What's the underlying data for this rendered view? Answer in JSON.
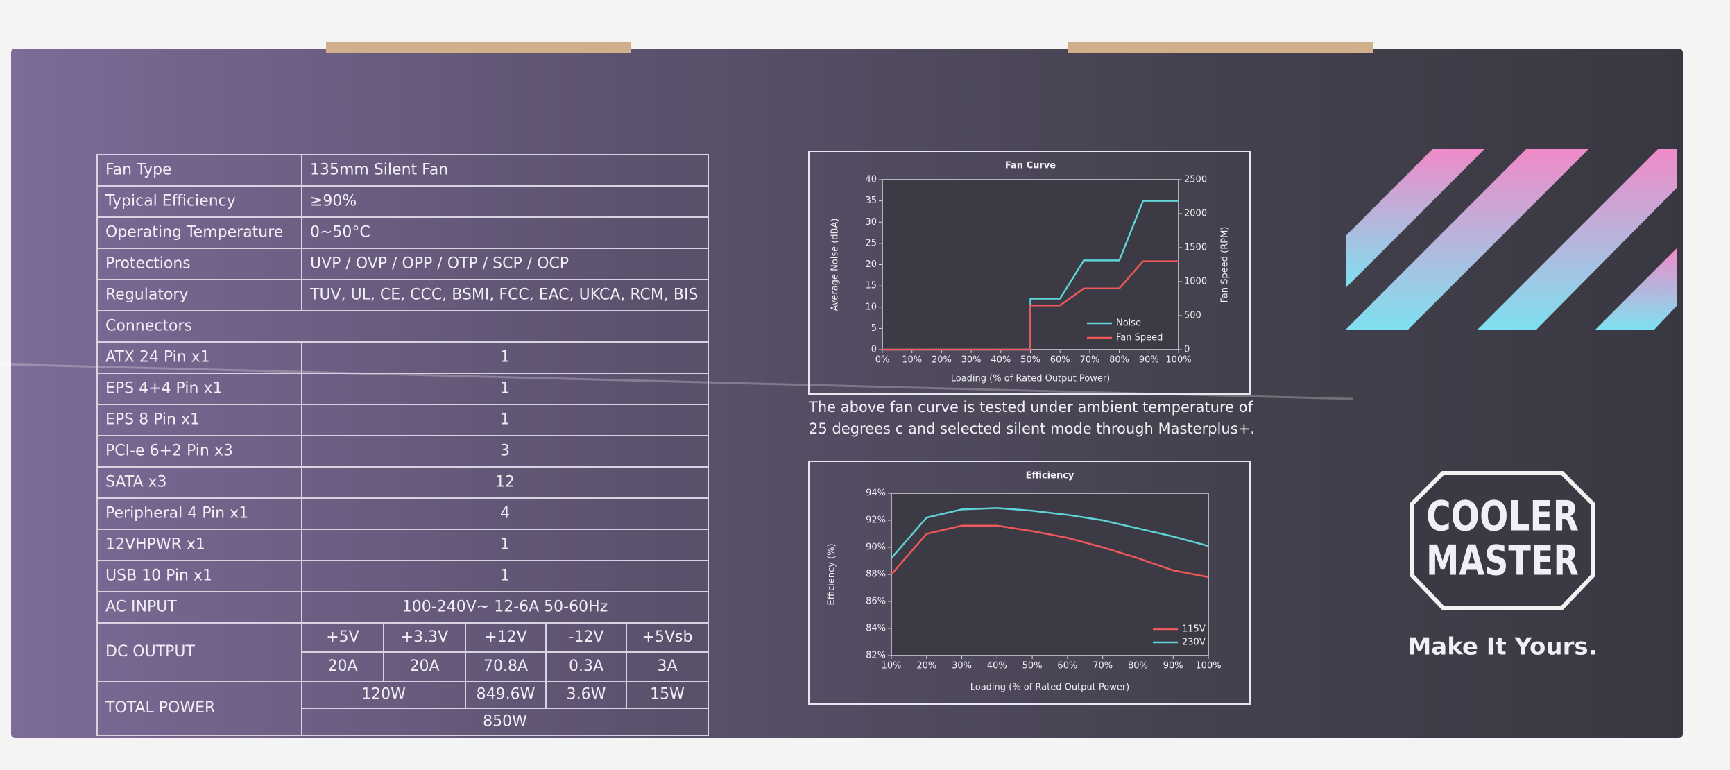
{
  "table": {
    "rows": [
      [
        "Fan Type",
        "135mm Silent Fan"
      ],
      [
        "Typical Efficiency",
        "≥90%"
      ],
      [
        "Operating Temperature",
        "0~50°C"
      ],
      [
        "Protections",
        "UVP / OVP / OPP / OTP / SCP / OCP"
      ],
      [
        "Regulatory",
        "TUV, UL, CE, CCC, BSMI, FCC, EAC, UKCA, RCM, BIS"
      ],
      [
        "Connectors"
      ],
      [
        "ATX 24 Pin x1",
        "1"
      ],
      [
        "EPS 4+4 Pin x1",
        "1"
      ],
      [
        "EPS 8 Pin x1",
        "1"
      ],
      [
        "PCI-e 6+2 Pin x3",
        "3"
      ],
      [
        "SATA x3",
        "12"
      ],
      [
        "Peripheral 4 Pin x1",
        "4"
      ],
      [
        "12VHPWR x1",
        "1"
      ],
      [
        "USB 10 Pin x1",
        "1"
      ],
      [
        "AC INPUT",
        "100-240V~ 12-6A 50-60Hz"
      ]
    ],
    "dc_output": {
      "label": "DC OUTPUT",
      "rails": [
        "+5V",
        "+3.3V",
        "+12V",
        "-12V",
        "+5Vsb"
      ],
      "currents": [
        "20A",
        "20A",
        "70.8A",
        "0.3A",
        "3A"
      ]
    },
    "total_power": {
      "label": "TOTAL POWER",
      "parts": [
        "120W",
        "849.6W",
        "3.6W",
        "15W"
      ],
      "total": "850W"
    }
  },
  "chart_data": [
    {
      "type": "line",
      "title": "Fan Curve",
      "xlabel": "Loading (% of Rated Output Power)",
      "ylabel": "Average Noise (dBA)",
      "y2label": "Fan Speed (RPM)",
      "x": [
        0,
        50,
        50,
        60,
        68,
        80,
        88,
        100
      ],
      "series": [
        {
          "name": "Noise",
          "color": "#5fd3d6",
          "values": [
            0,
            0,
            12,
            12,
            21,
            21,
            35,
            35
          ]
        },
        {
          "name": "Fan Speed",
          "color": "#f0585a",
          "axis": "y2",
          "values": [
            0,
            0,
            650,
            650,
            900,
            900,
            1300,
            1300
          ]
        }
      ],
      "xlim": [
        0,
        100
      ],
      "xticks": [
        {
          "value": 0,
          "label": "0%"
        },
        {
          "value": 10,
          "label": "10%"
        },
        {
          "value": 20,
          "label": "20%"
        },
        {
          "value": 30,
          "label": "30%"
        },
        {
          "value": 40,
          "label": "40%"
        },
        {
          "value": 50,
          "label": "50%"
        },
        {
          "value": 60,
          "label": "60%"
        },
        {
          "value": 70,
          "label": "70%"
        },
        {
          "value": 80,
          "label": "80%"
        },
        {
          "value": 90,
          "label": "90%"
        },
        {
          "value": 100,
          "label": "100%"
        }
      ],
      "ylim": [
        0,
        40
      ],
      "yticks": [
        0,
        5,
        10,
        15,
        20,
        25,
        30,
        35,
        40
      ],
      "y2lim": [
        0,
        2500
      ],
      "y2ticks": [
        0,
        500,
        1000,
        1500,
        2000,
        2500
      ]
    },
    {
      "type": "line",
      "title": "Efficiency",
      "xlabel": "Loading (% of Rated Output Power)",
      "ylabel": "Efficiency (%)",
      "x": [
        10,
        20,
        30,
        40,
        50,
        60,
        70,
        80,
        90,
        100
      ],
      "series": [
        {
          "name": "115V",
          "color": "#f0585a",
          "values": [
            88.0,
            91.0,
            91.6,
            91.6,
            91.2,
            90.7,
            90.0,
            89.2,
            88.3,
            87.8
          ]
        },
        {
          "name": "230V",
          "color": "#5fd3d6",
          "values": [
            89.2,
            92.2,
            92.8,
            92.9,
            92.7,
            92.4,
            92.0,
            91.4,
            90.8,
            90.1
          ]
        }
      ],
      "xlim": [
        10,
        100
      ],
      "xticks": [
        {
          "value": 10,
          "label": "10%"
        },
        {
          "value": 20,
          "label": "20%"
        },
        {
          "value": 30,
          "label": "30%"
        },
        {
          "value": 40,
          "label": "40%"
        },
        {
          "value": 50,
          "label": "50%"
        },
        {
          "value": 60,
          "label": "60%"
        },
        {
          "value": 70,
          "label": "70%"
        },
        {
          "value": 80,
          "label": "80%"
        },
        {
          "value": 90,
          "label": "90%"
        },
        {
          "value": 100,
          "label": "100%"
        }
      ],
      "ylim": [
        82,
        94
      ],
      "yticks": [
        {
          "value": 82,
          "label": "82%"
        },
        {
          "value": 84,
          "label": "84%"
        },
        {
          "value": 86,
          "label": "86%"
        },
        {
          "value": 88,
          "label": "88%"
        },
        {
          "value": 90,
          "label": "90%"
        },
        {
          "value": 92,
          "label": "92%"
        },
        {
          "value": 94,
          "label": "94%"
        }
      ]
    }
  ],
  "caption": [
    "The above fan curve is tested under ambient temperature of",
    "25 degrees c and selected silent mode through Masterplus+."
  ],
  "logo": [
    "COOLER",
    "MASTER"
  ],
  "slogan": "Make It Yours."
}
